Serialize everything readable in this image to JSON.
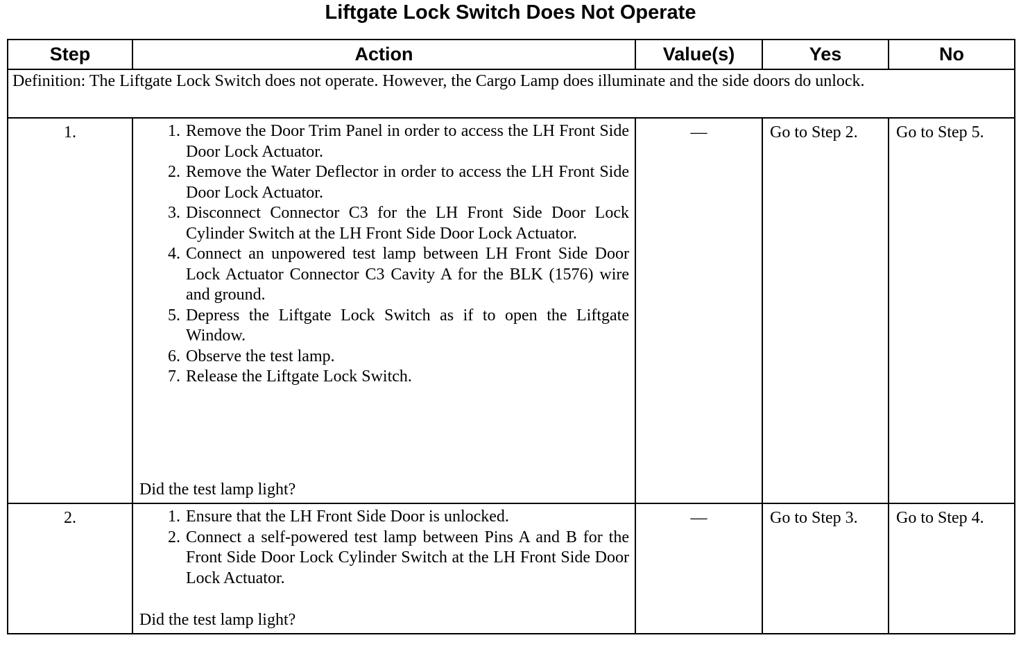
{
  "title": "Liftgate Lock Switch Does Not Operate",
  "headers": {
    "step": "Step",
    "action": "Action",
    "values": "Value(s)",
    "yes": "Yes",
    "no": "No"
  },
  "definition": "Definition: The Liftgate Lock Switch does not operate. However, the Cargo Lamp does illuminate and the side doors do unlock.",
  "rows": [
    {
      "step": "1.",
      "actions": [
        "Remove the Door Trim Panel in order to access the LH Front Side Door Lock Actuator.",
        "Remove the Water Deflector in order to access the LH Front Side Door Lock Actuator.",
        "Disconnect Connector C3 for the LH Front Side Door Lock Cylinder Switch at the LH Front Side Door Lock Actuator.",
        "Connect an unpowered test lamp between LH Front Side Door Lock Actuator Connector C3 Cavity A for the BLK (1576) wire and ground.",
        "Depress the Liftgate Lock Switch as if to open the Liftgate Window.",
        "Observe the test lamp.",
        "Release the Liftgate Lock Switch."
      ],
      "question": "Did the test lamp light?",
      "value": "—",
      "yes": "Go to Step 2.",
      "no": "Go to Step 5."
    },
    {
      "step": "2.",
      "actions": [
        "Ensure that the LH Front Side Door is unlocked.",
        "Connect a self-powered test lamp between Pins A and B for the Front Side Door Lock Cylinder Switch at the LH Front Side Door Lock Actuator."
      ],
      "question": "Did the test lamp light?",
      "value": "—",
      "yes": "Go to Step 3.",
      "no": "Go to Step 4."
    }
  ]
}
